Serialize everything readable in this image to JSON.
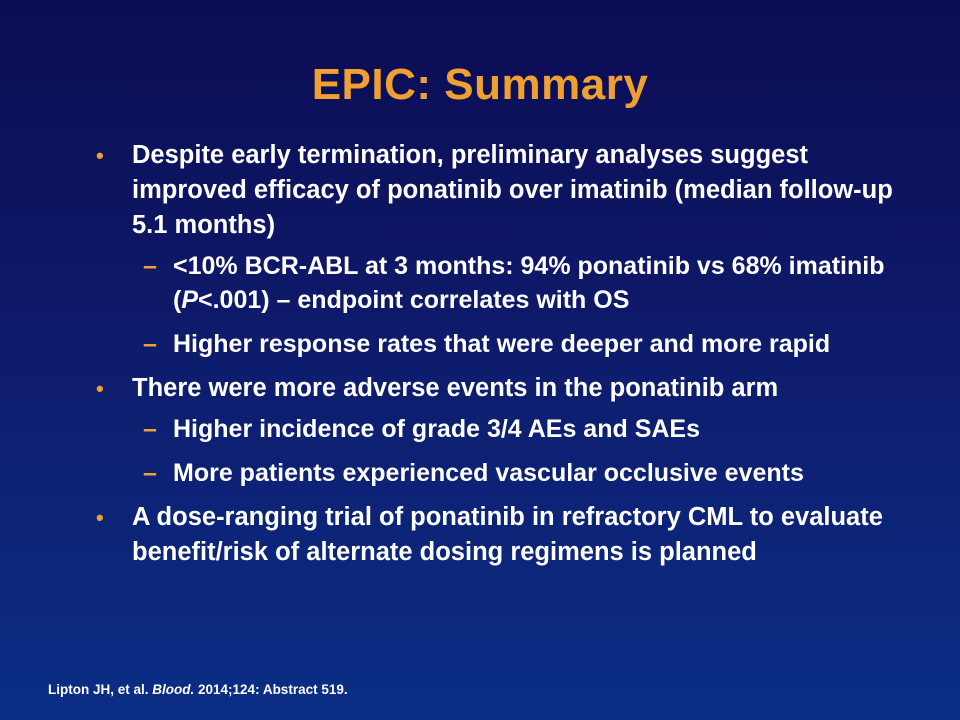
{
  "title": "EPIC: Summary",
  "bullet_symbol": "•",
  "dash_symbol": "–",
  "bullets": [
    {
      "text": "Despite early termination, preliminary analyses suggest improved efficacy of ponatinib over imatinib (median follow-up 5.1 months)"
    },
    {
      "text_before_italic": "<10% BCR-ABL at 3 months: 94% ponatinib vs 68% imatinib (",
      "italic": "P",
      "text_after_italic": "<.001) – endpoint correlates with OS"
    },
    {
      "text": "Higher response rates that were deeper and more rapid"
    },
    {
      "text": "There were more adverse events in the ponatinib arm"
    },
    {
      "text": "Higher incidence of grade 3/4 AEs and SAEs"
    },
    {
      "text": "More patients experienced vascular occlusive events"
    },
    {
      "text": "A dose-ranging trial of ponatinib in refractory CML to evaluate benefit/risk of alternate dosing regimens is planned"
    }
  ],
  "footer": {
    "authors": "Lipton JH, et al. ",
    "journal": "Blood.",
    "details": " 2014;124: Abstract 519."
  },
  "colors": {
    "title": "#f0a030",
    "bullets": "#f0a030",
    "text": "#ffffff",
    "background_top": "#0c0c52",
    "background_bottom": "#0b2e86"
  }
}
